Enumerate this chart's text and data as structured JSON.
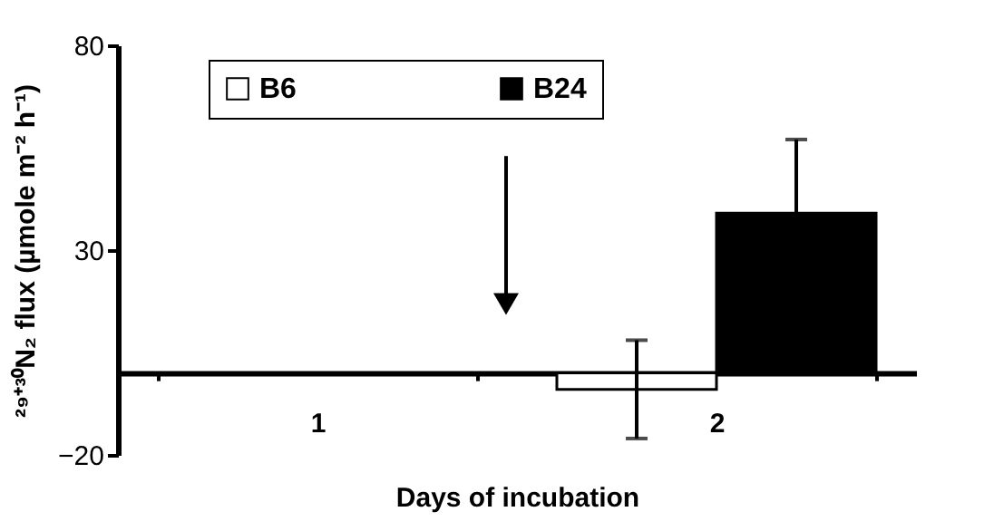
{
  "chart_data": {
    "type": "bar",
    "xlabel": "Days of incubation",
    "ylabel": "²⁹⁺³⁰N₂ flux (µmole m⁻² h⁻¹)",
    "categories": [
      "1",
      "2"
    ],
    "series": [
      {
        "name": "B6",
        "color": "#ffffff",
        "values": [
          null,
          -4
        ],
        "errors": [
          null,
          [
            -16,
            8
          ]
        ]
      },
      {
        "name": "B24",
        "color": "#000000",
        "values": [
          null,
          39
        ],
        "errors": [
          null,
          18
        ]
      }
    ],
    "ylim": [
      -20,
      80
    ],
    "yticks": [
      -20,
      30,
      80
    ],
    "grid": false,
    "legend": "top left"
  }
}
